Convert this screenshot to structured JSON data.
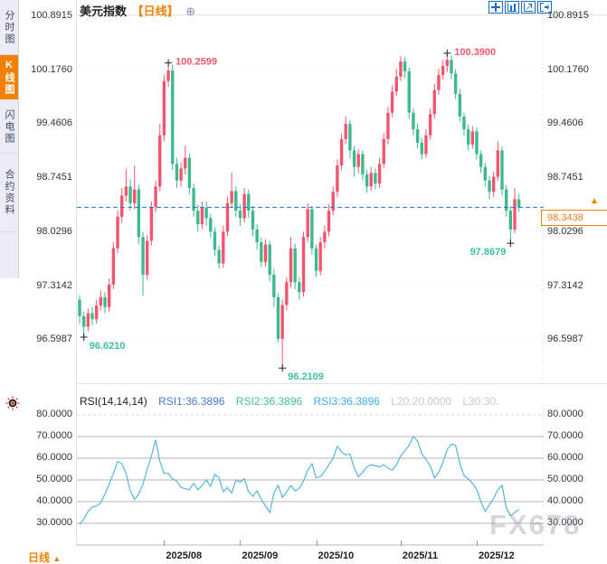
{
  "app_title": "美元指数 日线 K线图",
  "colors": {
    "bull": "#f2566e",
    "bear": "#3eb88d",
    "accent_orange": "#f28100",
    "dashed_line": "#1d7ad6",
    "rsi_line": "#56b6d8",
    "annotation_high": "#f2566e",
    "annotation_low": "#3fc0a4",
    "grid_price": "#ebebeb",
    "grid_rsi": "#b4b4b4",
    "axis_text": "#333333",
    "toolbar_blue": "#1a6fc4"
  },
  "sidebar": {
    "tabs": [
      {
        "label": "分时图",
        "active": false
      },
      {
        "label": "K线图",
        "active": true
      },
      {
        "label": "闪电图",
        "active": false
      },
      {
        "label": "合约资料",
        "active": false
      }
    ]
  },
  "header": {
    "title": "美元指数",
    "period_tag": "【日线】",
    "expand_icon": "⊕"
  },
  "toolbar": {
    "icons": [
      "pan-icon",
      "axis-scale-icon",
      "trend-cursor-icon",
      "popout-icon"
    ]
  },
  "price_axis": {
    "labels": [
      "100.8915",
      "100.1760",
      "99.4606",
      "98.7451",
      "98.0296",
      "97.3142",
      "96.5987"
    ]
  },
  "rsi_axis": {
    "labels": [
      "80.0000",
      "70.0000",
      "60.0000",
      "50.0000",
      "40.0000",
      "30.0000"
    ]
  },
  "current_price": {
    "value": "98.3438"
  },
  "rsi_header": {
    "title": "RSI(14,14,14)",
    "rsi1": "RSI1:36.3896",
    "rsi2": "RSI2:36.3896",
    "rsi3": "RSI3:36.3896",
    "l20": "L20:20.0000",
    "l30": "L30:30."
  },
  "footer": {
    "period": "日线",
    "arrow": "▲"
  },
  "watermark": "FX678",
  "chart_data": [
    {
      "type": "candlestick",
      "title": "美元指数",
      "period": "日线",
      "y_ticks": [
        100.8915,
        100.176,
        99.4606,
        98.7451,
        98.0296,
        97.3142,
        96.5987
      ],
      "y_range": [
        96.01,
        100.9155
      ],
      "current_price": 98.3438,
      "x_month_ticks": [
        {
          "label": "2025/08",
          "index": 20
        },
        {
          "label": "2025/09",
          "index": 38
        },
        {
          "label": "2025/10",
          "index": 56
        },
        {
          "label": "2025/11",
          "index": 76
        },
        {
          "label": "2025/12",
          "index": 94
        }
      ],
      "markers": [
        {
          "index": 21,
          "price": 100.2599,
          "label": "100.2599",
          "type": "high",
          "align": "right"
        },
        {
          "index": 87,
          "price": 100.39,
          "label": "100.3900",
          "type": "high",
          "align": "right"
        },
        {
          "index": 1,
          "price": 96.621,
          "label": "96.6210",
          "type": "low",
          "align": "right-below"
        },
        {
          "index": 48,
          "price": 96.2109,
          "label": "96.2109",
          "type": "low",
          "align": "right-below"
        },
        {
          "index": 102,
          "price": 97.8679,
          "label": "97.8679",
          "type": "low",
          "align": "left-below"
        }
      ],
      "candles": [
        [
          97.12,
          97.18,
          96.8,
          96.9
        ],
        [
          96.9,
          96.96,
          96.621,
          96.76
        ],
        [
          96.76,
          97.0,
          96.7,
          96.94
        ],
        [
          96.94,
          97.02,
          96.78,
          96.86
        ],
        [
          96.86,
          97.12,
          96.8,
          97.04
        ],
        [
          97.04,
          97.24,
          96.98,
          97.15
        ],
        [
          97.15,
          97.22,
          96.94,
          97.02
        ],
        [
          97.02,
          97.4,
          96.96,
          97.32
        ],
        [
          97.32,
          97.88,
          97.26,
          97.8
        ],
        [
          97.8,
          98.3,
          97.74,
          98.22
        ],
        [
          98.22,
          98.6,
          98.14,
          98.5
        ],
        [
          98.5,
          98.85,
          98.42,
          98.62
        ],
        [
          98.62,
          98.72,
          98.3,
          98.4
        ],
        [
          98.4,
          98.9,
          98.32,
          98.58
        ],
        [
          98.58,
          98.64,
          97.85,
          97.95
        ],
        [
          97.95,
          98.02,
          97.17,
          97.45
        ],
        [
          97.45,
          97.98,
          97.38,
          97.9
        ],
        [
          97.9,
          98.42,
          97.84,
          98.35
        ],
        [
          98.35,
          98.7,
          98.28,
          98.62
        ],
        [
          98.62,
          99.45,
          98.56,
          99.3
        ],
        [
          99.3,
          100.1,
          99.22,
          100.02
        ],
        [
          100.02,
          100.2599,
          99.94,
          100.16
        ],
        [
          100.16,
          100.24,
          98.84,
          98.92
        ],
        [
          98.92,
          99.0,
          98.6,
          98.7
        ],
        [
          98.7,
          98.94,
          98.62,
          98.86
        ],
        [
          98.86,
          99.16,
          98.78,
          99.0
        ],
        [
          99.0,
          99.06,
          98.52,
          98.6
        ],
        [
          98.6,
          98.66,
          98.22,
          98.3
        ],
        [
          98.3,
          98.38,
          98.02,
          98.12
        ],
        [
          98.12,
          98.42,
          98.06,
          98.34
        ],
        [
          98.34,
          98.42,
          98.1,
          98.2
        ],
        [
          98.2,
          98.26,
          97.94,
          98.02
        ],
        [
          98.02,
          98.08,
          97.7,
          97.78
        ],
        [
          97.78,
          97.84,
          97.53,
          97.6
        ],
        [
          97.6,
          98.1,
          97.54,
          98.02
        ],
        [
          98.02,
          98.48,
          97.96,
          98.4
        ],
        [
          98.4,
          98.81,
          98.34,
          98.56
        ],
        [
          98.56,
          98.62,
          98.22,
          98.3
        ],
        [
          98.3,
          98.38,
          98.1,
          98.2
        ],
        [
          98.2,
          98.6,
          98.14,
          98.52
        ],
        [
          98.52,
          98.58,
          98.2,
          98.3
        ],
        [
          98.3,
          98.36,
          97.96,
          98.05
        ],
        [
          98.05,
          98.12,
          97.78,
          97.88
        ],
        [
          97.88,
          97.94,
          97.55,
          97.62
        ],
        [
          97.62,
          97.92,
          97.56,
          97.85
        ],
        [
          97.85,
          97.9,
          97.36,
          97.45
        ],
        [
          97.45,
          97.52,
          97.02,
          97.15
        ],
        [
          97.15,
          97.2,
          96.55,
          96.6
        ],
        [
          96.6,
          97.12,
          96.2109,
          97.05
        ],
        [
          97.05,
          97.42,
          96.98,
          97.35
        ],
        [
          97.35,
          97.95,
          97.28,
          97.8
        ],
        [
          97.8,
          97.86,
          97.26,
          97.35
        ],
        [
          97.35,
          97.42,
          97.12,
          97.22
        ],
        [
          97.22,
          98.02,
          97.16,
          97.95
        ],
        [
          97.95,
          98.4,
          97.88,
          98.32
        ],
        [
          98.32,
          98.36,
          97.72,
          97.8
        ],
        [
          97.8,
          97.85,
          97.42,
          97.5
        ],
        [
          97.5,
          97.95,
          97.44,
          97.88
        ],
        [
          97.88,
          98.1,
          97.8,
          98.02
        ],
        [
          98.02,
          98.38,
          97.96,
          98.3
        ],
        [
          98.3,
          98.62,
          98.24,
          98.55
        ],
        [
          98.55,
          98.98,
          98.48,
          98.9
        ],
        [
          98.9,
          99.32,
          98.84,
          99.25
        ],
        [
          99.25,
          99.55,
          99.18,
          99.45
        ],
        [
          99.45,
          99.5,
          99.0,
          99.1
        ],
        [
          99.1,
          99.16,
          98.75,
          98.88
        ],
        [
          98.88,
          99.12,
          98.8,
          99.05
        ],
        [
          99.05,
          99.1,
          98.7,
          98.78
        ],
        [
          98.78,
          98.84,
          98.54,
          98.62
        ],
        [
          98.62,
          98.88,
          98.56,
          98.8
        ],
        [
          98.8,
          98.86,
          98.58,
          98.66
        ],
        [
          98.66,
          99.0,
          98.6,
          98.92
        ],
        [
          98.92,
          99.33,
          98.86,
          99.25
        ],
        [
          99.25,
          99.68,
          99.18,
          99.6
        ],
        [
          99.6,
          99.96,
          99.54,
          99.88
        ],
        [
          99.88,
          100.18,
          99.82,
          100.08
        ],
        [
          100.08,
          100.35,
          100.02,
          100.28
        ],
        [
          100.28,
          100.34,
          100.06,
          100.15
        ],
        [
          100.15,
          100.2,
          99.52,
          99.6
        ],
        [
          99.6,
          99.66,
          99.3,
          99.38
        ],
        [
          99.38,
          99.46,
          99.12,
          99.2
        ],
        [
          99.2,
          99.26,
          98.98,
          99.05
        ],
        [
          99.05,
          99.38,
          99.0,
          99.3
        ],
        [
          99.3,
          99.66,
          99.24,
          99.58
        ],
        [
          99.58,
          99.98,
          99.52,
          99.9
        ],
        [
          99.9,
          100.18,
          99.84,
          100.1
        ],
        [
          100.1,
          100.3,
          100.04,
          100.22
        ],
        [
          100.22,
          100.39,
          100.14,
          100.3
        ],
        [
          100.3,
          100.36,
          100.04,
          100.12
        ],
        [
          100.12,
          100.18,
          99.78,
          99.85
        ],
        [
          99.85,
          99.92,
          99.48,
          99.55
        ],
        [
          99.55,
          99.6,
          99.3,
          99.38
        ],
        [
          99.38,
          99.44,
          99.1,
          99.18
        ],
        [
          99.18,
          99.42,
          99.12,
          99.35
        ],
        [
          99.35,
          99.4,
          98.98,
          99.05
        ],
        [
          99.05,
          99.1,
          98.8,
          98.88
        ],
        [
          98.88,
          98.94,
          98.62,
          98.7
        ],
        [
          98.7,
          98.76,
          98.45,
          98.55
        ],
        [
          98.55,
          98.82,
          98.48,
          98.75
        ],
        [
          98.75,
          99.22,
          98.7,
          99.1
        ],
        [
          99.1,
          99.15,
          98.5,
          98.58
        ],
        [
          98.58,
          98.64,
          98.22,
          98.3
        ],
        [
          98.3,
          98.36,
          97.8679,
          98.05
        ],
        [
          98.05,
          98.6,
          98.0,
          98.45
        ],
        [
          98.45,
          98.52,
          98.28,
          98.3438
        ]
      ]
    },
    {
      "type": "line",
      "name": "RSI(14,14,14)",
      "y_ticks": [
        80,
        70,
        60,
        50,
        40,
        30
      ],
      "y_range": [
        19.6,
        83.75
      ],
      "levels": {
        "L20": 20.0,
        "L30": 30.0
      },
      "last_values": {
        "rsi1": 36.3896,
        "rsi2": 36.3896,
        "rsi3": 36.3896
      },
      "values": [
        29.5,
        32,
        35.5,
        37.5,
        38,
        39.5,
        43.5,
        48,
        53,
        58.5,
        57.5,
        53,
        45,
        41,
        43.5,
        48,
        55,
        61,
        68.5,
        58.5,
        53,
        53,
        50.5,
        49.5,
        46.5,
        46,
        45.5,
        48.5,
        45.5,
        47.5,
        50,
        47,
        52.5,
        51,
        44.5,
        46.5,
        44,
        50,
        49,
        50.5,
        44.5,
        42.5,
        45,
        41,
        38,
        35,
        44,
        47.5,
        42,
        44.5,
        47.5,
        45,
        46,
        49.5,
        54.5,
        57.5,
        51,
        51.5,
        54,
        57,
        60,
        65.5,
        63,
        61.5,
        62,
        55.5,
        51.5,
        53.5,
        56,
        57,
        56.5,
        56,
        57,
        55.5,
        54.5,
        57,
        61,
        63.5,
        66,
        70,
        68,
        62,
        59.5,
        56.5,
        51,
        53.5,
        58,
        64,
        66.5,
        66,
        57.5,
        52,
        50.5,
        48.5,
        45.5,
        40,
        35.5,
        38.5,
        41.5,
        45.5,
        47.5,
        37,
        33.5,
        35,
        36.39
      ]
    }
  ]
}
